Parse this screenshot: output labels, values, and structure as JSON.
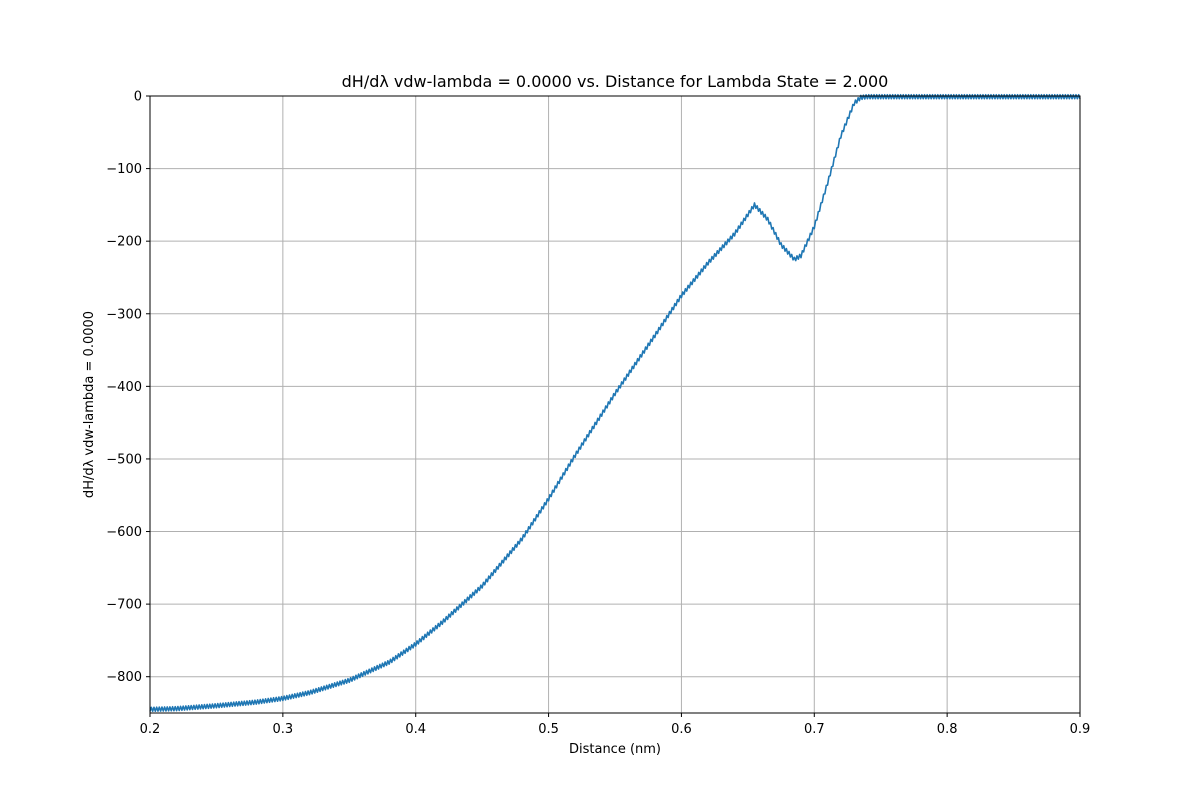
{
  "chart_data": {
    "type": "line",
    "title": "dH/dλ vdw-lambda = 0.0000 vs. Distance for Lambda State = 2.000",
    "xlabel": "Distance (nm)",
    "ylabel": "dH/dλ vdw-lambda = 0.0000",
    "xlim": [
      0.2,
      0.9
    ],
    "ylim": [
      -850,
      0
    ],
    "x_ticks": [
      0.2,
      0.3,
      0.4,
      0.5,
      0.6,
      0.7,
      0.8,
      0.9
    ],
    "x_tick_labels": [
      "0.2",
      "0.3",
      "0.4",
      "0.5",
      "0.6",
      "0.7",
      "0.8",
      "0.9"
    ],
    "y_ticks": [
      0,
      -100,
      -200,
      -300,
      -400,
      -500,
      -600,
      -700,
      -800
    ],
    "y_tick_labels": [
      "0",
      "−100",
      "−200",
      "−300",
      "−400",
      "−500",
      "−600",
      "−700",
      "−800"
    ],
    "grid": true,
    "legend": "none",
    "series": [
      {
        "color": "#1f77b4",
        "x": [
          0.2,
          0.22,
          0.25,
          0.28,
          0.3,
          0.32,
          0.35,
          0.38,
          0.4,
          0.42,
          0.45,
          0.48,
          0.5,
          0.52,
          0.55,
          0.58,
          0.6,
          0.62,
          0.64,
          0.655,
          0.665,
          0.675,
          0.685,
          0.69,
          0.7,
          0.71,
          0.72,
          0.73,
          0.735,
          0.74,
          0.8,
          0.9
        ],
        "y": [
          -845,
          -844,
          -840,
          -835,
          -830,
          -822,
          -805,
          -780,
          -755,
          -725,
          -675,
          -610,
          -555,
          -495,
          -410,
          -330,
          -275,
          -230,
          -190,
          -150,
          -170,
          -205,
          -225,
          -220,
          -180,
          -120,
          -55,
          -10,
          -2,
          -1,
          -1,
          -1
        ]
      }
    ]
  }
}
